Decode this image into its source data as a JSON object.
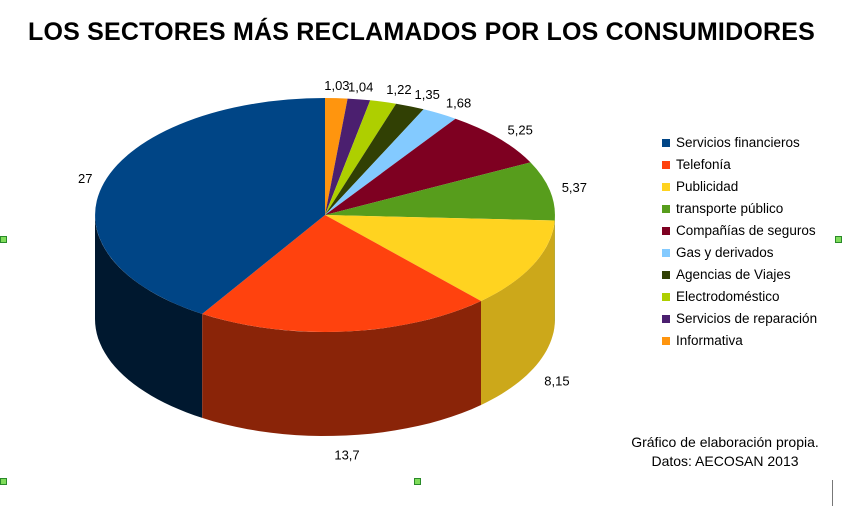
{
  "title": "LOS SECTORES MÁS RECLAMADOS POR LOS CONSUMIDORES",
  "credit": {
    "line1": "Gráfico de elaboración propia.",
    "line2": "Datos: AECOSAN 2013"
  },
  "chart_data": {
    "type": "pie",
    "style": "3d",
    "title": "LOS SECTORES MÁS RECLAMADOS POR LOS CONSUMIDORES",
    "legend_position": "right",
    "slices": [
      {
        "label": "Informativa",
        "value": 1.03,
        "display": "1,03",
        "color": "#FF950E"
      },
      {
        "label": "Servicios de reparación",
        "value": 1.04,
        "display": "1,04",
        "color": "#4B1F6F"
      },
      {
        "label": "Electrodoméstico",
        "value": 1.22,
        "display": "1,22",
        "color": "#AECF00"
      },
      {
        "label": "Agencias de Viajes",
        "value": 1.35,
        "display": "1,35",
        "color": "#314004"
      },
      {
        "label": "Gas y derivados",
        "value": 1.68,
        "display": "1,68",
        "color": "#83CAFF"
      },
      {
        "label": "Compañías de seguros",
        "value": 5.25,
        "display": "5,25",
        "color": "#7E0021"
      },
      {
        "label": "transporte público",
        "value": 5.37,
        "display": "5,37",
        "color": "#579D1C"
      },
      {
        "label": "Publicidad",
        "value": 8.15,
        "display": "8,15",
        "color": "#FFD320"
      },
      {
        "label": "Telefonía",
        "value": 13.7,
        "display": "13,7",
        "color": "#FF420E"
      },
      {
        "label": "Servicios financieros",
        "value": 27,
        "display": "27",
        "color": "#004586"
      }
    ],
    "legend_order": [
      "Servicios financieros",
      "Telefonía",
      "Publicidad",
      "transporte público",
      "Compañías de seguros",
      "Gas y derivados",
      "Agencias de Viajes",
      "Electrodoméstico",
      "Servicios de reparación",
      "Informativa"
    ]
  }
}
